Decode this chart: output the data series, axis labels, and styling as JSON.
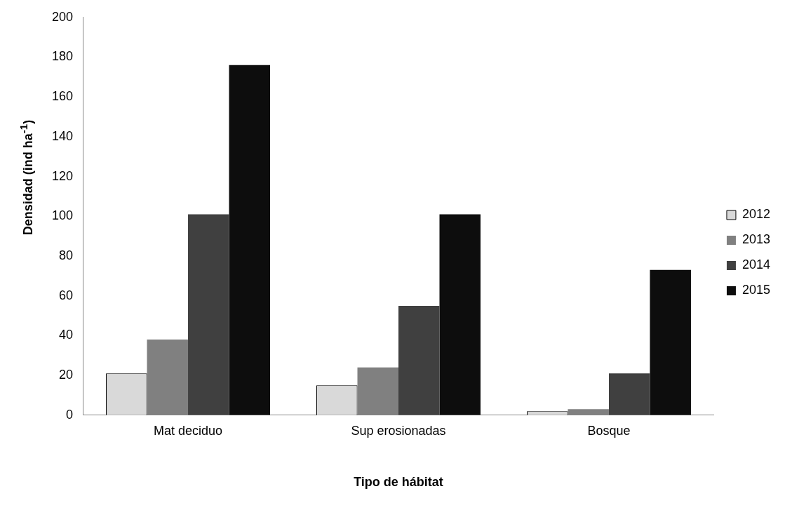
{
  "chart_data": {
    "type": "bar",
    "xlabel": "Tipo de hábitat",
    "ylabel": "Densidad (ind ha$^{-1}$)",
    "categories": [
      "Mat deciduo",
      "Sup erosionadas",
      "Bosque"
    ],
    "series": [
      {
        "name": "2012",
        "color": "#d9d9d9",
        "values": [
          21,
          15,
          2
        ]
      },
      {
        "name": "2013",
        "color": "#808080",
        "values": [
          38,
          24,
          3
        ]
      },
      {
        "name": "2014",
        "color": "#404040",
        "values": [
          101,
          55,
          21
        ]
      },
      {
        "name": "2015",
        "color": "#0d0d0d",
        "values": [
          176,
          101,
          73
        ]
      }
    ],
    "ylim": [
      0,
      200
    ],
    "yticks": [
      0,
      20,
      40,
      60,
      80,
      100,
      120,
      140,
      160,
      180,
      200
    ],
    "grid": false,
    "legend": "right"
  }
}
